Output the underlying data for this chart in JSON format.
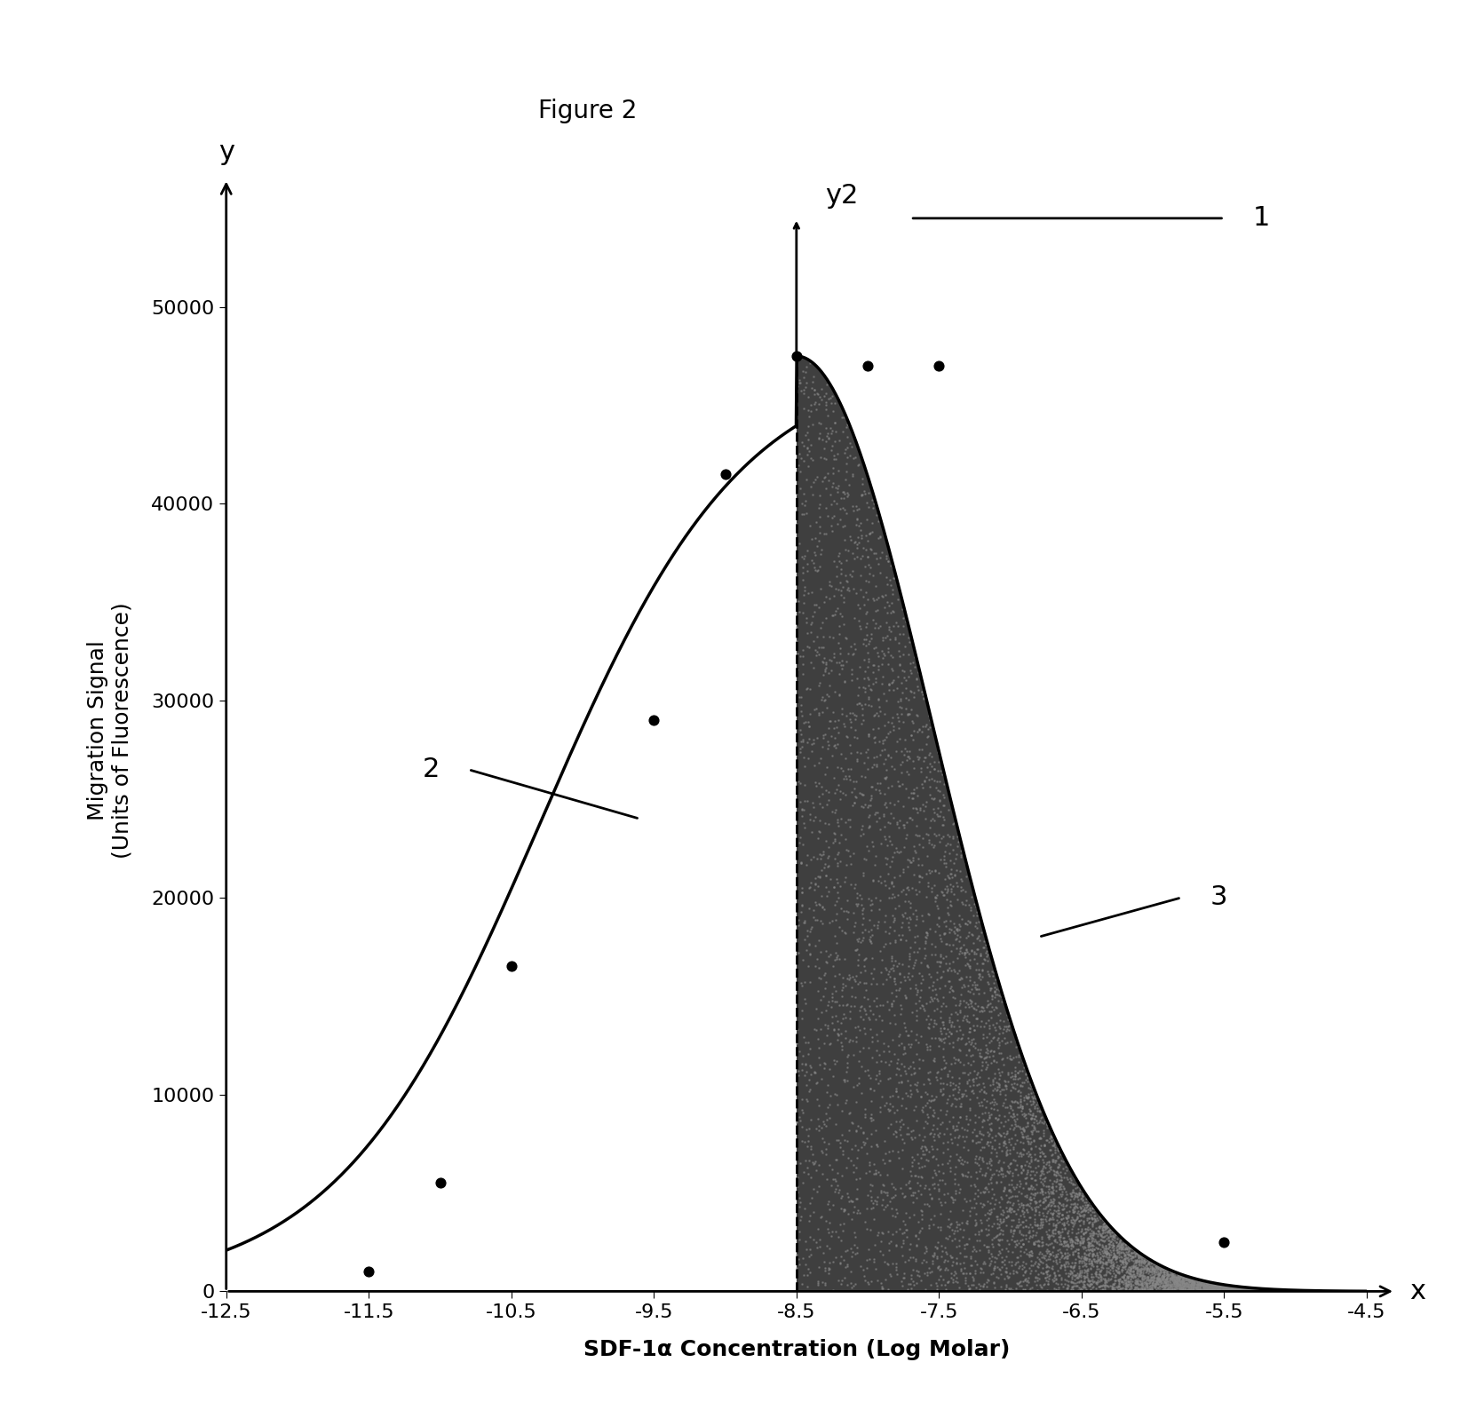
{
  "title": "Figure 2",
  "xlabel": "SDF-1α Concentration (Log Molar)",
  "ylabel": "Migration Signal\n(Units of Fluorescence)",
  "xlim": [
    -12.5,
    -4.5
  ],
  "ylim": [
    0,
    57000
  ],
  "xticks": [
    -12.5,
    -11.5,
    -10.5,
    -9.5,
    -8.5,
    -7.5,
    -6.5,
    -5.5,
    -4.5
  ],
  "yticks": [
    0,
    10000,
    20000,
    30000,
    40000,
    50000
  ],
  "data_points_x": [
    -11.5,
    -11.0,
    -10.5,
    -9.5,
    -9.0,
    -8.5,
    -8.0,
    -7.5,
    -5.5
  ],
  "data_points_y": [
    1000,
    5500,
    16500,
    29000,
    41500,
    47500,
    47000,
    47000,
    2500
  ],
  "peak_x": -8.5,
  "peak_y": 47500,
  "shade_start": -8.5,
  "shade_end": -4.5,
  "background_color": "#ffffff",
  "curve_color": "#000000",
  "shade_color": "#2a2a2a",
  "dot_color": "#000000",
  "font_size_title": 20,
  "font_size_axis_label": 18,
  "font_size_tick": 16,
  "font_size_annotation": 22
}
